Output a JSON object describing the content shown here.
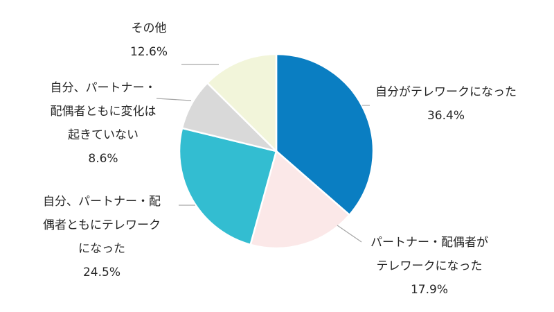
{
  "chart_data": {
    "type": "pie",
    "title": "",
    "start_angle_deg": 0,
    "direction": "clockwise",
    "legend": "none",
    "slices": [
      {
        "label_lines": [
          "自分がテレワークになった"
        ],
        "value": 36.4,
        "value_label": "36.4%",
        "color": "#0a7ec2"
      },
      {
        "label_lines": [
          "パートナー・配偶者が",
          "テレワークになった"
        ],
        "value": 17.9,
        "value_label": "17.9%",
        "color": "#fbe8e8"
      },
      {
        "label_lines": [
          "自分、パートナー・配",
          "偶者ともにテレワーク",
          "になった"
        ],
        "value": 24.5,
        "value_label": "24.5%",
        "color": "#33bdd1"
      },
      {
        "label_lines": [
          "自分、パートナー・",
          "配偶者ともに変化は",
          "起きていない"
        ],
        "value": 8.6,
        "value_label": "8.6%",
        "color": "#d9d9d9"
      },
      {
        "label_lines": [
          "その他"
        ],
        "value": 12.6,
        "value_label": "12.6%",
        "color": "#f2f5da"
      }
    ]
  }
}
